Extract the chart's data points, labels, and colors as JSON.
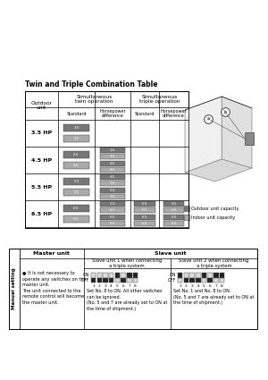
{
  "bg": "#ffffff",
  "black": "#000000",
  "white": "#ffffff",
  "dark_gray": "#666666",
  "light_gray": "#aaaaaa",
  "title": "Twin and Triple Combination Table",
  "hp_rows": [
    "3.5 HP",
    "4.5 HP",
    "5.5 HP",
    "6.5 HP"
  ],
  "sub_headers": [
    "Standard",
    "Horsepower\ndifference",
    "Standard",
    "Horsepower\ndifference"
  ],
  "switch_section": {
    "master_text": "It is not necessary to\noperate any switches on the\nmaster unit.\nThe unit connected to the\nremote control will become\nthe master unit.",
    "slave1_text": "Set No. 8 to ON. All other switches\ncan be ignored.\n(No. 5 and 7 are already set to ON at\nthe time of shipment.)",
    "slave2_text": "Set No. 1 and No. 8 to ON.\n(No. 5 and 7 are already set to ON at\nthe time of shipment.)",
    "slave1_on": [
      0,
      0,
      0,
      0,
      1,
      0,
      1,
      1
    ],
    "slave2_on": [
      1,
      0,
      0,
      0,
      1,
      0,
      1,
      1
    ]
  }
}
